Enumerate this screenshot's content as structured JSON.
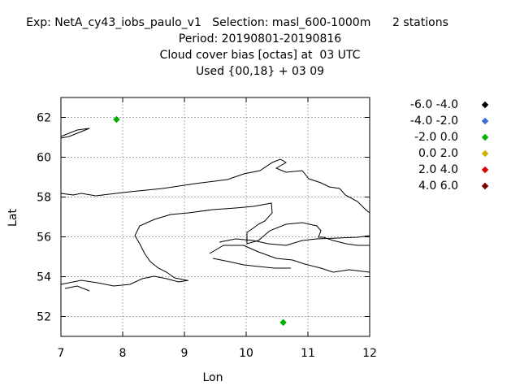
{
  "titles": {
    "line1": "Exp: NetA_cy43_iobs_paulo_v1   Selection: masl_600-1000m      2 stations",
    "line2": "Period: 20190801-20190816",
    "line3": "Cloud cover bias [octas] at  03 UTC",
    "line4": "Used {00,18} + 03 09"
  },
  "legend": [
    {
      "label": "-6.0 -4.0",
      "color": "#000000"
    },
    {
      "label": "-4.0 -2.0",
      "color": "#3a6bd6"
    },
    {
      "label": "-2.0 0.0",
      "color": "#00b000"
    },
    {
      "label": "0.0 2.0",
      "color": "#c8b400"
    },
    {
      "label": "2.0 4.0",
      "color": "#e00000"
    },
    {
      "label": "4.0 6.0",
      "color": "#7a0000"
    }
  ],
  "chart_data": {
    "type": "scatter",
    "xlabel": "Lon",
    "ylabel": "Lat",
    "xlim": [
      7,
      12
    ],
    "ylim": [
      51,
      63
    ],
    "xticks": [
      7,
      8,
      9,
      10,
      11,
      12
    ],
    "yticks": [
      52,
      54,
      56,
      58,
      60,
      62
    ],
    "grid": true,
    "legend_position": "right",
    "points": [
      {
        "lon": 7.9,
        "lat": 61.9,
        "bin": "-2.0 0.0",
        "color": "#00b000"
      },
      {
        "lon": 10.6,
        "lat": 51.7,
        "bin": "-2.0 0.0",
        "color": "#00b000"
      }
    ]
  }
}
